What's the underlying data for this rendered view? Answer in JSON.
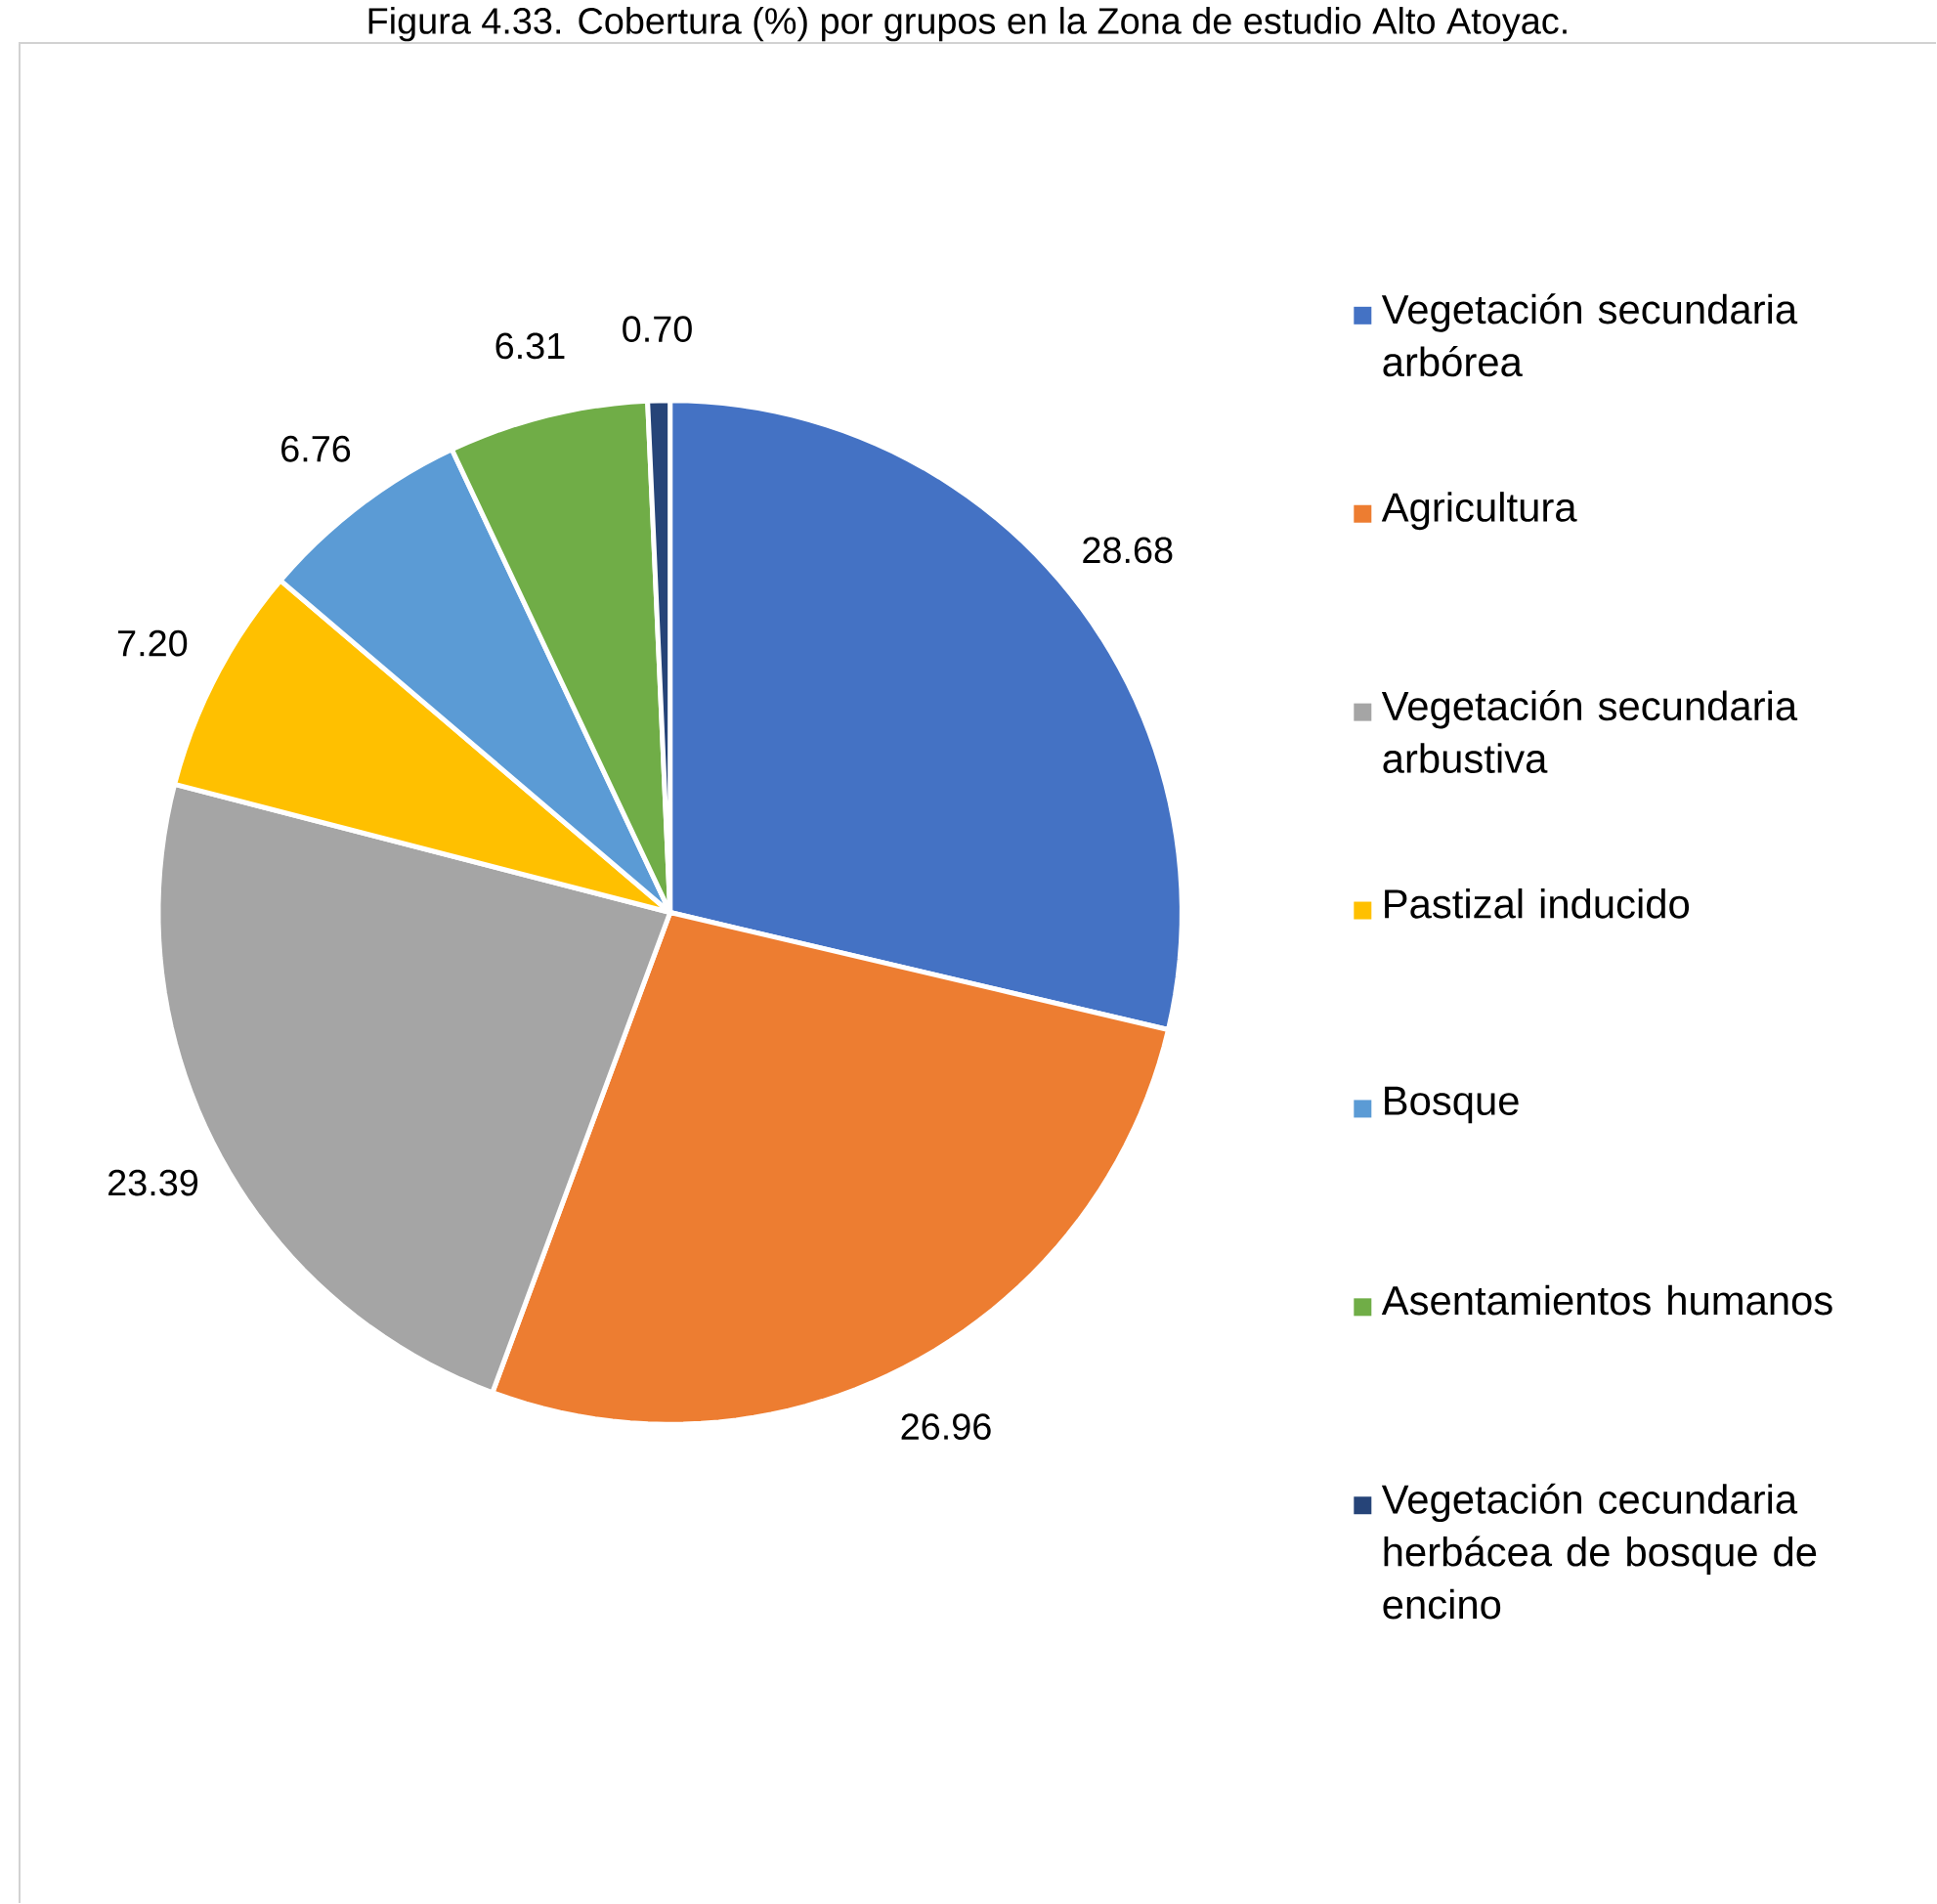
{
  "chart_data": {
    "type": "pie",
    "title": "Figura 4.33. Cobertura (%) por grupos en la Zona de estudio Alto Atoyac.",
    "categories": [
      "Vegetación secundaria arbórea",
      "Agricultura",
      "Vegetación secundaria arbustiva",
      "Pastizal inducido",
      "Bosque",
      "Asentamientos humanos",
      "Vegetación cecundaria herbácea de bosque de encino"
    ],
    "values": [
      28.68,
      26.96,
      23.39,
      7.2,
      6.76,
      6.31,
      0.7
    ],
    "colors": [
      "#4472c4",
      "#ed7d31",
      "#a5a5a5",
      "#ffc000",
      "#5b9bd5",
      "#70ad47",
      "#264478"
    ],
    "value_labels": [
      "28.68",
      "26.96",
      "23.39",
      "7.20",
      "6.76",
      "6.31",
      "0.70"
    ],
    "legend": "right"
  }
}
